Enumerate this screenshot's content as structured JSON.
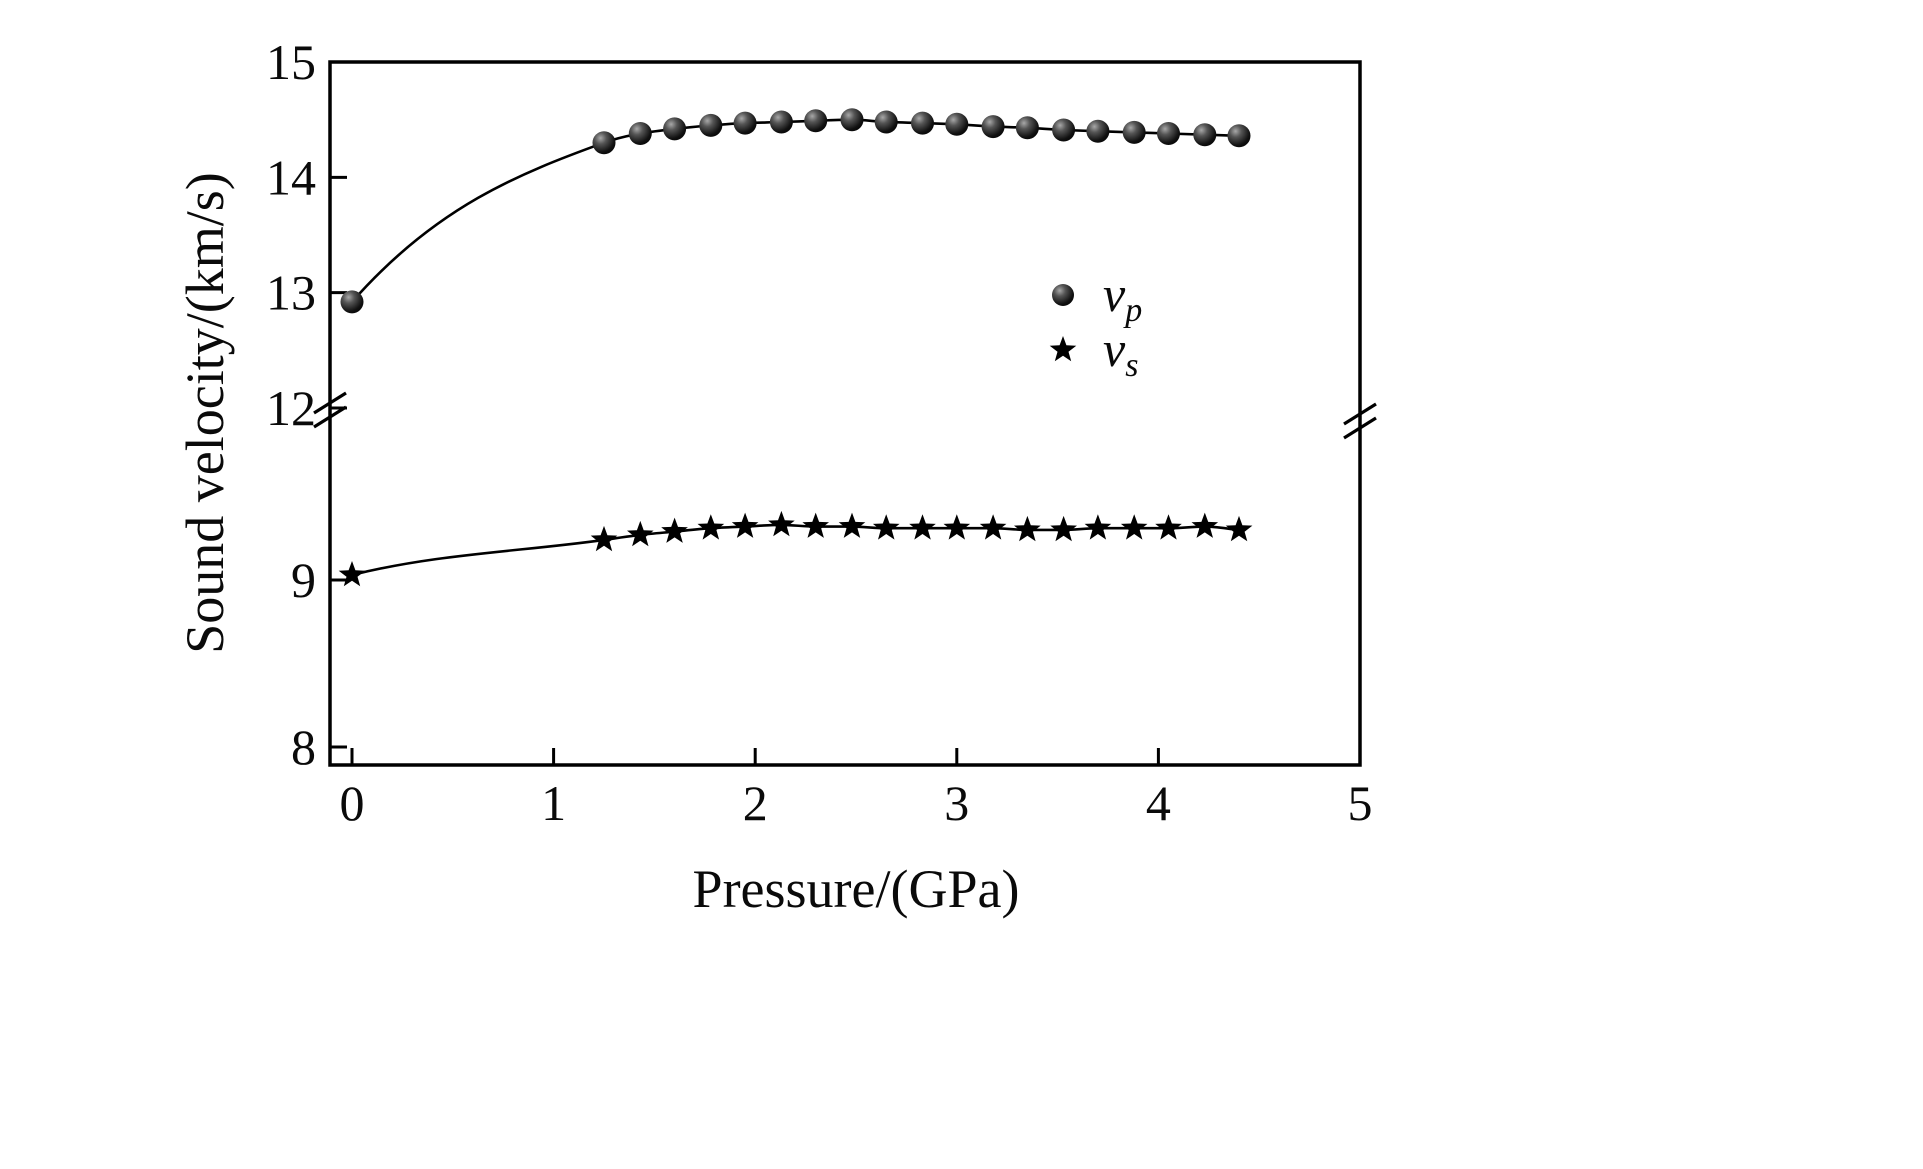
{
  "figure_background": "#ffffff",
  "ink_color": "#000000",
  "chart_data": {
    "type": "scatter",
    "title": "",
    "xlabel": "Pressure/(GPa)",
    "ylabel": "Sound velocity/(km/s)",
    "grid": false,
    "legend_position": "center-right-inside",
    "x_axis": {
      "label": "Pressure/(GPa)",
      "range": [
        0,
        5
      ],
      "ticks": [
        0,
        1,
        2,
        3,
        4,
        5
      ]
    },
    "y_axis": {
      "label": "Sound velocity/(km/s)",
      "broken": true,
      "lower_segment": {
        "range": [
          8,
          10.03
        ],
        "ticks": [
          8,
          9
        ]
      },
      "upper_segment": {
        "range": [
          12,
          15
        ],
        "ticks": [
          12,
          13,
          14,
          15
        ]
      }
    },
    "series": [
      {
        "name": "vp",
        "legend_label": "v",
        "legend_subscript": "p",
        "marker": "sphere",
        "color": "#000000",
        "x": [
          0,
          1.25,
          1.43,
          1.6,
          1.78,
          1.95,
          2.13,
          2.3,
          2.48,
          2.65,
          2.83,
          3.0,
          3.18,
          3.35,
          3.53,
          3.7,
          3.88,
          4.05,
          4.23,
          4.4
        ],
        "y": [
          12.92,
          14.3,
          14.38,
          14.42,
          14.45,
          14.47,
          14.48,
          14.49,
          14.5,
          14.48,
          14.47,
          14.46,
          14.44,
          14.43,
          14.41,
          14.4,
          14.39,
          14.38,
          14.37,
          14.36
        ]
      },
      {
        "name": "vs",
        "legend_label": "v",
        "legend_subscript": "s",
        "marker": "star",
        "color": "#000000",
        "x": [
          0,
          1.25,
          1.43,
          1.6,
          1.78,
          1.95,
          2.13,
          2.3,
          2.48,
          2.65,
          2.83,
          3.0,
          3.18,
          3.35,
          3.53,
          3.7,
          3.88,
          4.05,
          4.23,
          4.4
        ],
        "y": [
          9.03,
          9.24,
          9.27,
          9.29,
          9.31,
          9.32,
          9.33,
          9.32,
          9.32,
          9.31,
          9.31,
          9.31,
          9.31,
          9.3,
          9.3,
          9.31,
          9.31,
          9.31,
          9.32,
          9.3
        ]
      }
    ]
  }
}
